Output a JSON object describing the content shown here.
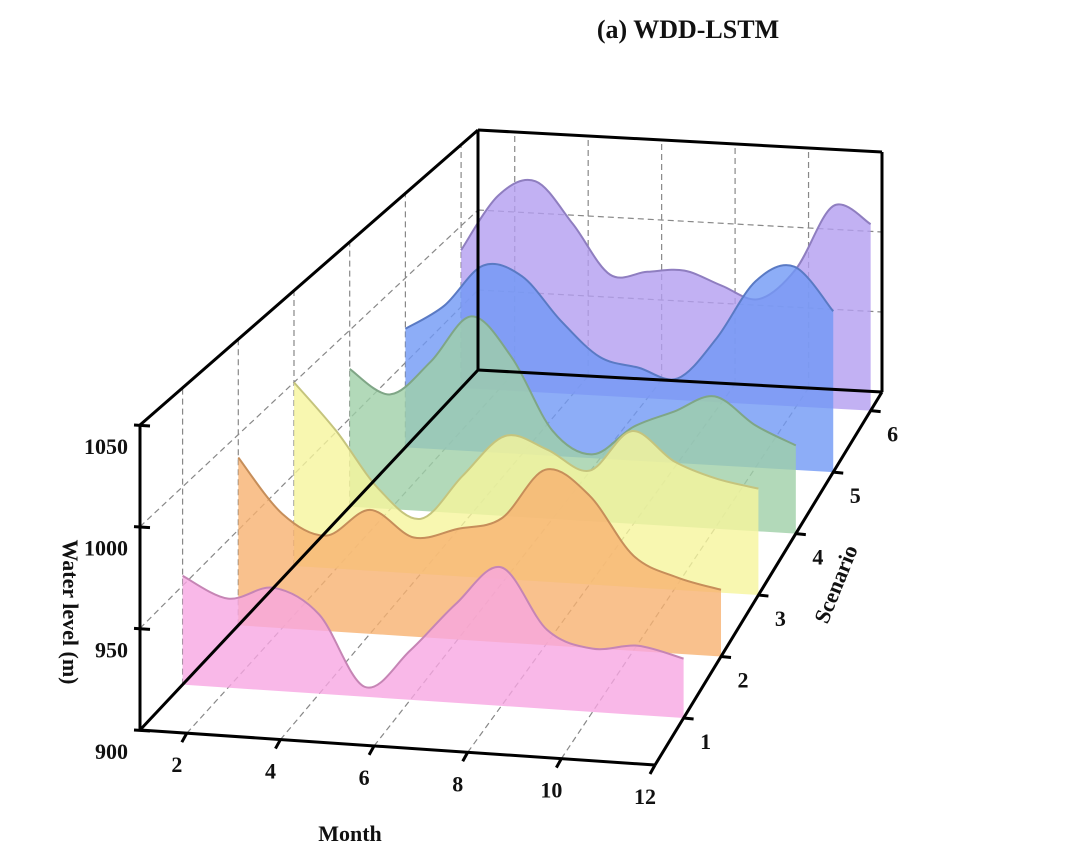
{
  "chart_data": {
    "type": "waterfall3d",
    "title": "(a) WDD-LSTM",
    "x_label": "Month",
    "y_label": "Water level (m)",
    "z_label": "Scenario",
    "x": [
      1,
      2,
      3,
      4,
      5,
      6,
      7,
      8,
      9,
      10,
      11,
      12
    ],
    "xticks": [
      2,
      4,
      6,
      8,
      10,
      12
    ],
    "ylim": [
      900,
      1050
    ],
    "yticks": [
      900,
      950,
      1000,
      1050
    ],
    "grid": true,
    "series": [
      {
        "name": "1",
        "color": "#f7a6e2",
        "values": [
          955,
          945,
          952,
          940,
          905,
          925,
          950,
          970,
          940,
          932,
          935,
          930
        ]
      },
      {
        "name": "2",
        "color": "#f8b170",
        "values": [
          988,
          960,
          950,
          965,
          952,
          958,
          965,
          992,
          980,
          950,
          940,
          935
        ]
      },
      {
        "name": "3",
        "color": "#f6f59c",
        "values": [
          1000,
          975,
          945,
          930,
          955,
          978,
          972,
          962,
          985,
          970,
          962,
          958
        ]
      },
      {
        "name": "4",
        "color": "#9fcfa8",
        "values": [
          978,
          965,
          985,
          1012,
          990,
          950,
          938,
          955,
          965,
          975,
          960,
          950
        ]
      },
      {
        "name": "5",
        "color": "#7199f5",
        "values": [
          970,
          985,
          1010,
          1005,
          980,
          960,
          955,
          950,
          975,
          1010,
          1020,
          995
        ]
      },
      {
        "name": "6",
        "color": "#b39ef0",
        "values": [
          985,
          1020,
          1030,
          1005,
          975,
          978,
          980,
          972,
          965,
          985,
          1025,
          1015
        ]
      }
    ]
  }
}
